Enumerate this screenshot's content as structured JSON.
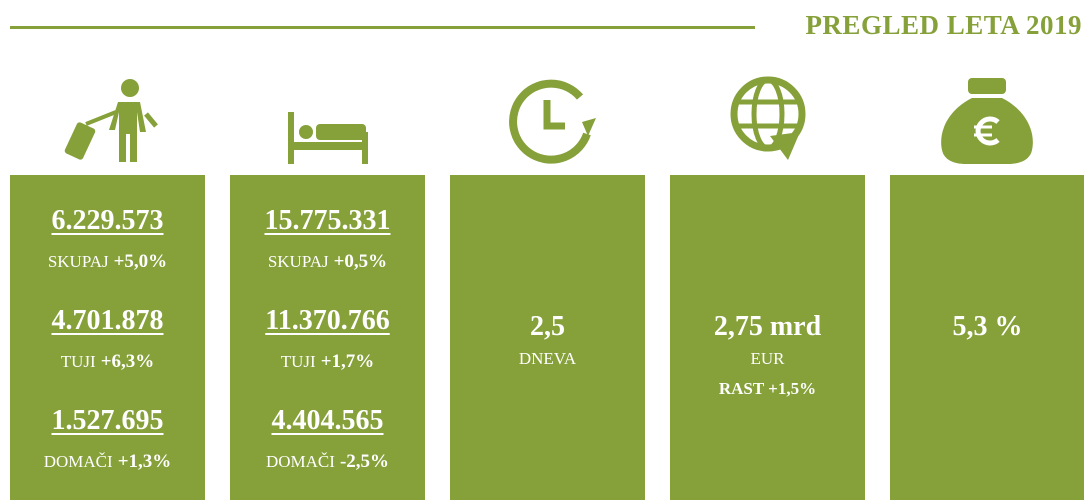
{
  "header": {
    "title": "PREGLED LETA 2019"
  },
  "columns": [
    {
      "stats": [
        {
          "value": "6.229.573",
          "label": "SKUPAJ",
          "change": "+5,0%"
        },
        {
          "value": "4.701.878",
          "label": "TUJI",
          "change": "+6,3%"
        },
        {
          "value": "1.527.695",
          "label": "DOMAČI",
          "change": "+1,3%"
        }
      ]
    },
    {
      "stats": [
        {
          "value": "15.775.331",
          "label": "SKUPAJ",
          "change": "+0,5%"
        },
        {
          "value": "11.370.766",
          "label": "TUJI",
          "change": "+1,7%"
        },
        {
          "value": "4.404.565",
          "label": "DOMAČI",
          "change": "-2,5%"
        }
      ]
    },
    {
      "value": "2,5",
      "unit": "DNEVA"
    },
    {
      "value": "2,75 mrd",
      "unit": "EUR",
      "note": "RAST +1,5%"
    },
    {
      "value": "5,3 %"
    }
  ]
}
